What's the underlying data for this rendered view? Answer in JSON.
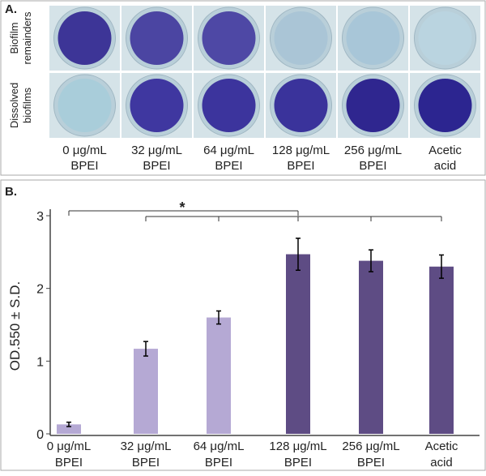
{
  "panel_a": {
    "label": "A.",
    "rows": [
      [
        "Biofilm",
        "remainders"
      ],
      [
        "Dissolved",
        "biofilms"
      ]
    ],
    "columns": [
      [
        "0 μg/mL",
        "BPEI"
      ],
      [
        "32 μg/mL",
        "BPEI"
      ],
      [
        "64 μg/mL",
        "BPEI"
      ],
      [
        "128 μg/mL",
        "BPEI"
      ],
      [
        "256 μg/mL",
        "BPEI"
      ],
      [
        "Acetic",
        "acid"
      ]
    ]
  },
  "chart_data": {
    "type": "bar",
    "panel_label": "B.",
    "y_label": "OD.550 ± S.D.",
    "categories": [
      [
        "0 μg/mL",
        "BPEI"
      ],
      [
        "32 μg/mL",
        "BPEI"
      ],
      [
        "64 μg/mL",
        "BPEI"
      ],
      [
        "128 μg/mL",
        "BPEI"
      ],
      [
        "256 μg/mL",
        "BPEI"
      ],
      [
        "Acetic",
        "acid"
      ]
    ],
    "values": [
      0.13,
      1.17,
      1.6,
      2.47,
      2.38,
      2.3
    ],
    "errors": [
      0.03,
      0.1,
      0.09,
      0.22,
      0.15,
      0.16
    ],
    "colors": [
      "#b5a9d4",
      "#b5a9d4",
      "#b5a9d4",
      "#5e4c84",
      "#5e4c84",
      "#5e4c84"
    ],
    "ylim": [
      0,
      3
    ],
    "yticks": [
      0,
      1,
      2,
      3
    ],
    "annotation": "*"
  }
}
